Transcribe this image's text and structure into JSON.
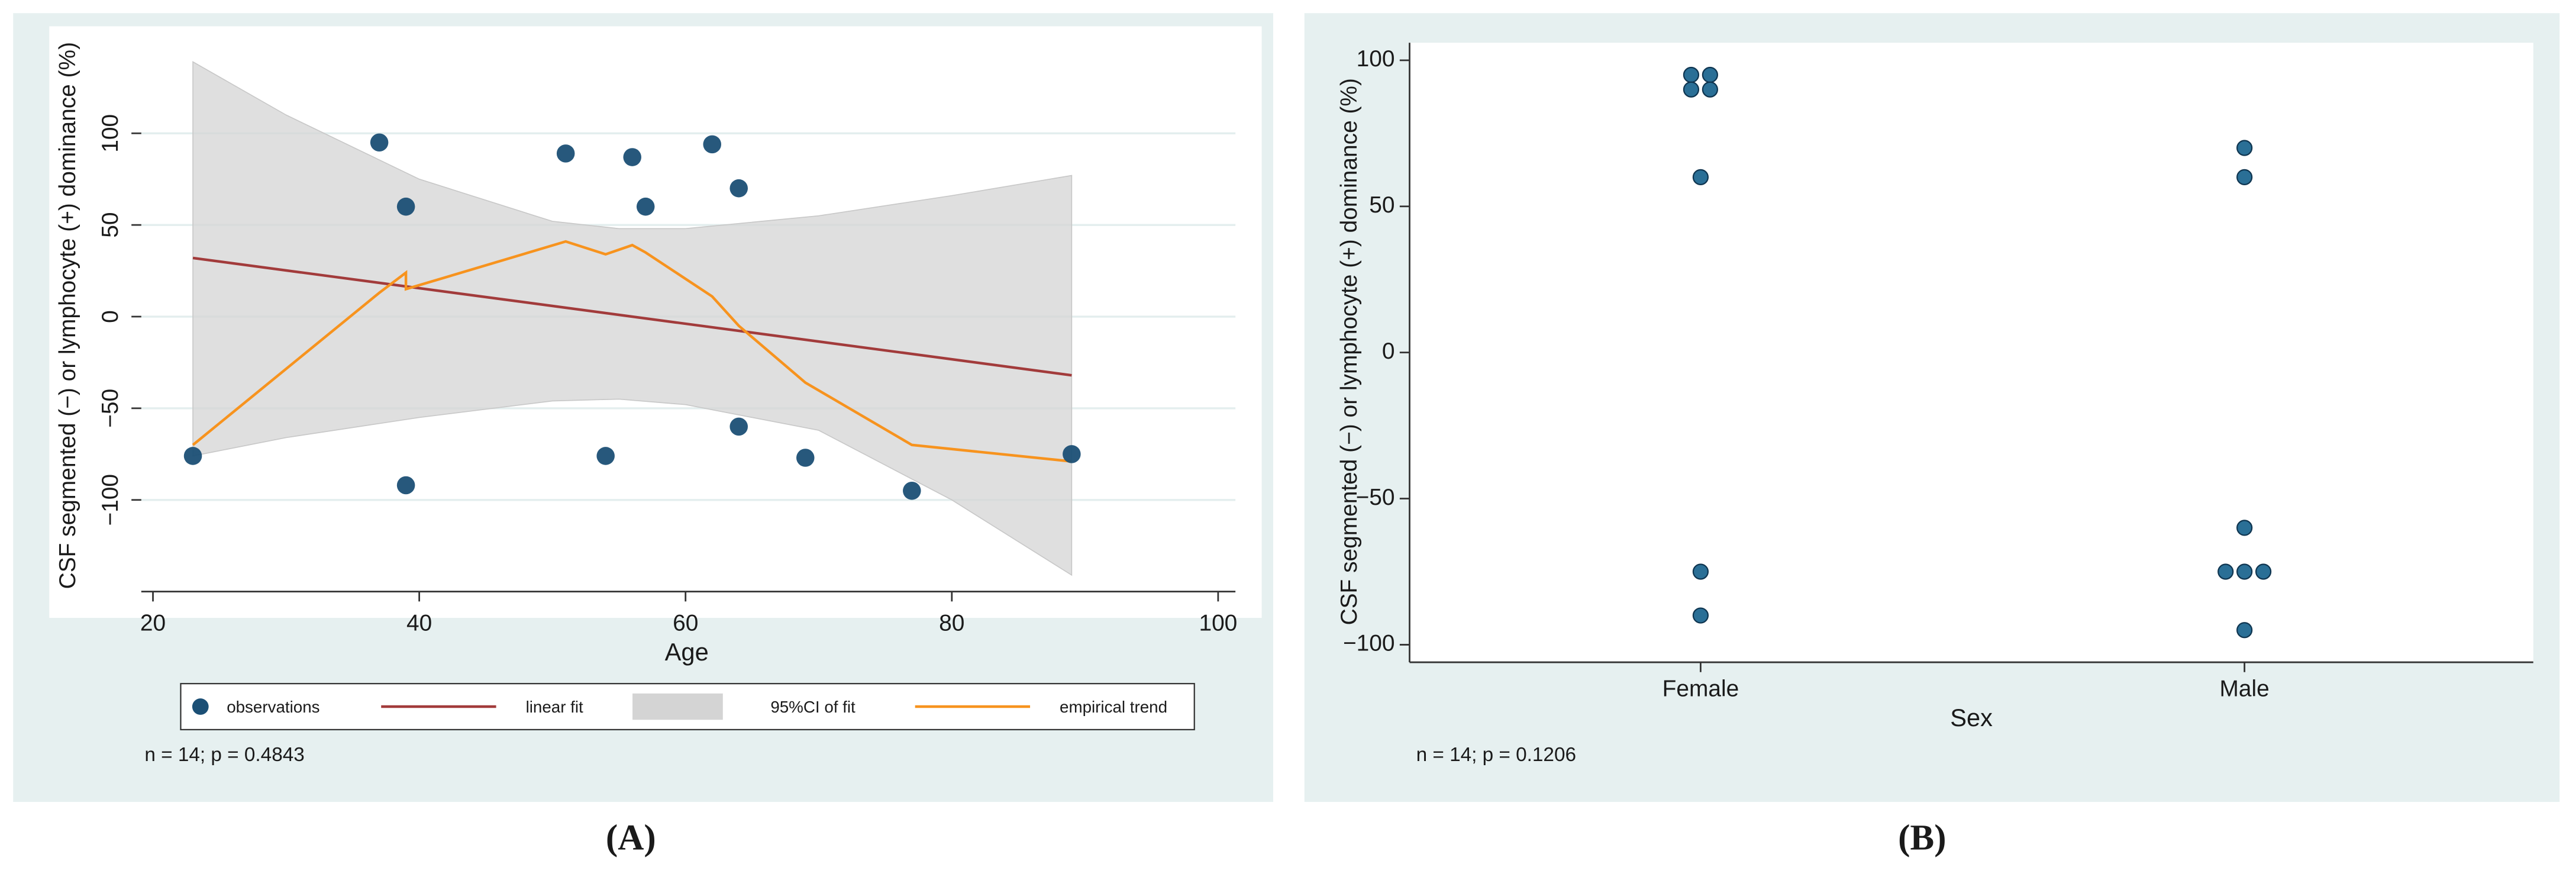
{
  "chart_data": [
    {
      "type": "scatter",
      "y_label": "CSF segmented (−) or lymphocyte (+) dominance (%)",
      "x_label": "Age",
      "xlim": [
        19,
        101.3
      ],
      "xticks": [
        20,
        40,
        60,
        80,
        100
      ],
      "ylim": [
        -150,
        153
      ],
      "yticks": [
        {
          "value": -100,
          "label": "−100"
        },
        {
          "value": -50,
          "label": "−50"
        },
        0,
        50,
        100
      ],
      "grid": true,
      "series": [
        {
          "name": "observations",
          "type": "scatter",
          "color": "#1b4f75",
          "x": [
            23,
            37,
            39,
            39,
            51,
            54,
            56,
            57,
            62,
            64,
            64,
            69,
            77,
            89
          ],
          "values": [
            -76,
            95,
            60,
            -92,
            89,
            -76,
            87,
            60,
            94,
            70,
            -60,
            -77,
            -95,
            -75
          ]
        },
        {
          "name": "linear fit",
          "type": "line",
          "color": "#a23b3b",
          "x": [
            23,
            89
          ],
          "values": [
            32,
            -32
          ]
        },
        {
          "name": "95%CI of fit",
          "type": "band",
          "color": "#d4d4d4",
          "x": [
            23,
            30,
            40,
            50,
            55,
            60,
            70,
            80,
            89
          ],
          "upper": [
            139,
            110,
            75,
            52,
            48,
            48,
            55,
            66,
            77
          ],
          "lower": [
            -76,
            -66,
            -55,
            -46,
            -45,
            -48,
            -62,
            -100,
            -141
          ]
        },
        {
          "name": "empirical trend",
          "type": "line",
          "color": "#f7931e",
          "x": [
            23,
            37,
            39,
            39,
            51,
            54,
            56,
            57,
            62,
            64,
            69,
            77,
            89
          ],
          "values": [
            -70,
            13,
            24,
            15,
            41,
            34,
            39,
            35,
            11,
            -5,
            -36,
            -70,
            -79
          ]
        }
      ],
      "note": "n = 14; p = 0.4843",
      "panel_label": "(A)"
    },
    {
      "type": "strip",
      "y_label": "CSF segmented (−) or lymphocyte (+) dominance (%)",
      "x_label": "Sex",
      "categories": [
        "Female",
        "Male"
      ],
      "color": "#2a6f96",
      "values": [
        [
          95,
          95,
          90,
          90,
          60,
          -75,
          -90
        ],
        [
          70,
          60,
          -60,
          -75,
          -75,
          -75,
          -95
        ]
      ],
      "ylim": [
        -106,
        106
      ],
      "yticks": [
        {
          "value": -100,
          "label": "−100"
        },
        {
          "value": -50,
          "label": "−50"
        },
        0,
        50,
        100
      ],
      "note": "n = 14; p = 0.1206",
      "panel_label": "(B)"
    }
  ]
}
